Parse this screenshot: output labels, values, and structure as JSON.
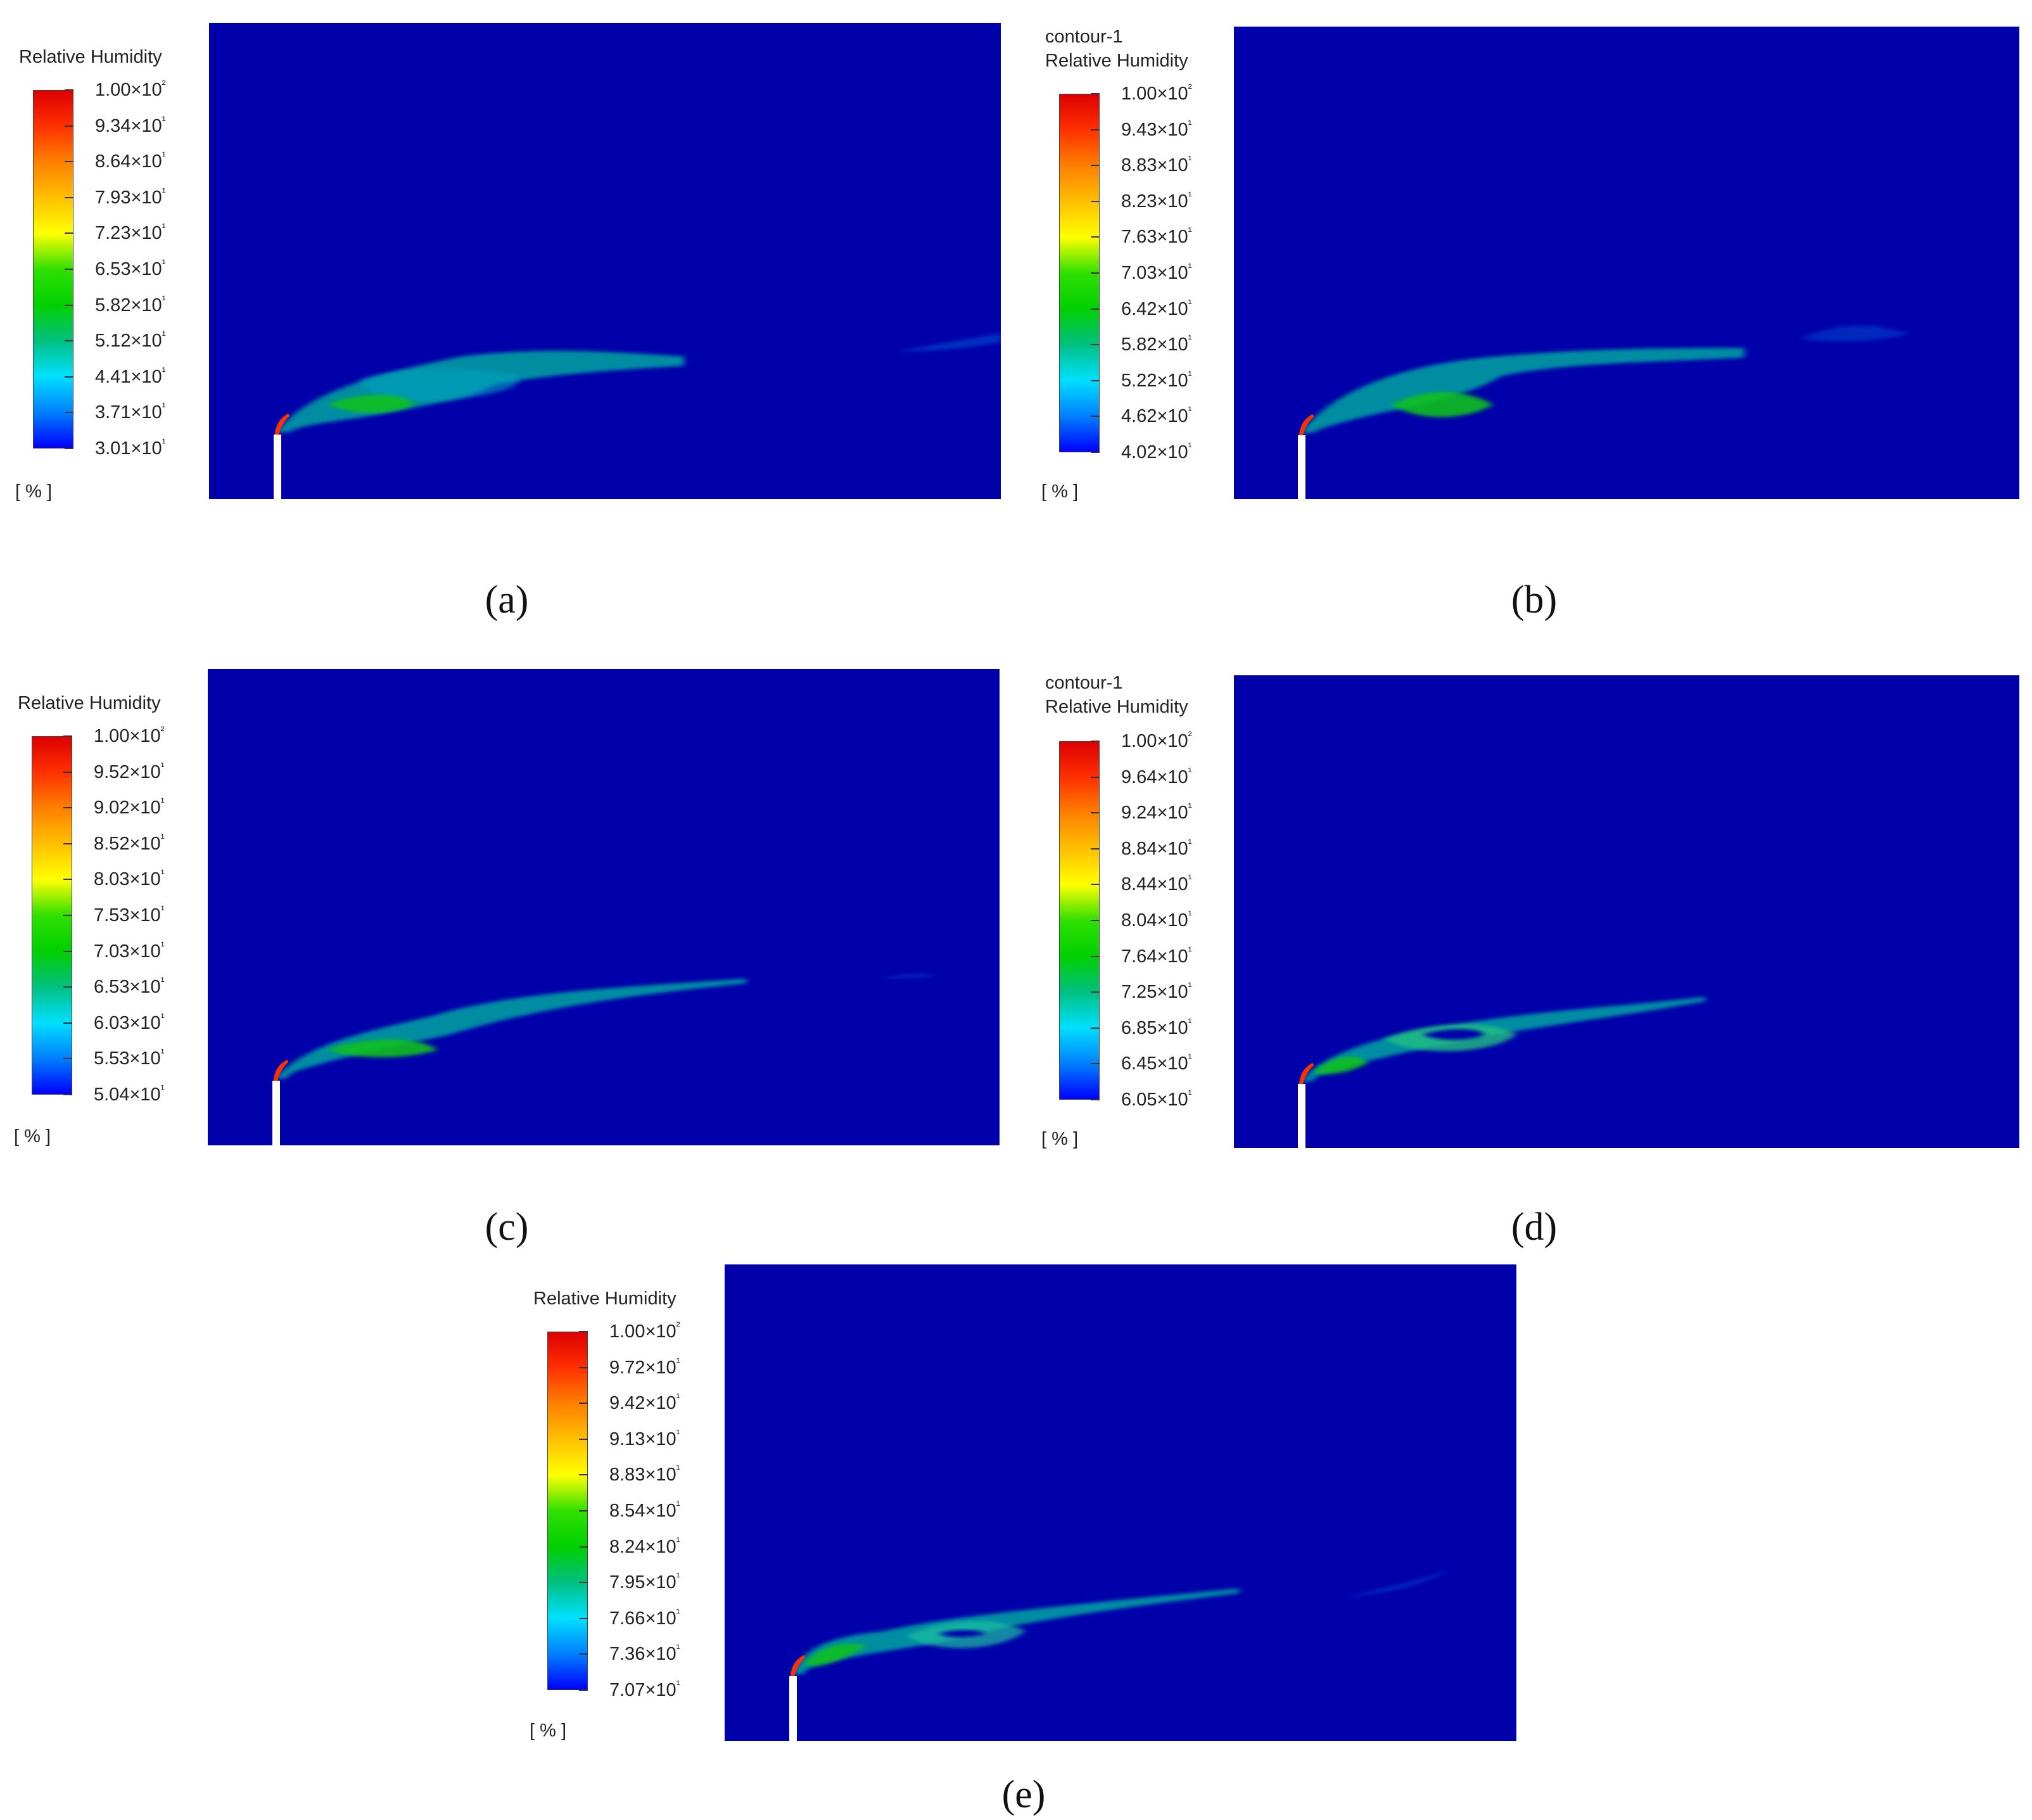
{
  "panels": [
    {
      "id": "a",
      "contour_label": "",
      "title": "Relative Humidity",
      "unit": "[ % ]",
      "ticks": [
        "1.00×10²",
        "9.34×10¹",
        "8.64×10¹",
        "7.93×10¹",
        "7.23×10¹",
        "6.53×10¹",
        "5.82×10¹",
        "5.12×10¹",
        "4.41×10¹",
        "3.71×10¹",
        "3.01×10¹"
      ],
      "caption": "(a)"
    },
    {
      "id": "b",
      "contour_label": "contour-1",
      "title": "Relative Humidity",
      "unit": "[ % ]",
      "ticks": [
        "1.00×10²",
        "9.43×10¹",
        "8.83×10¹",
        "8.23×10¹",
        "7.63×10¹",
        "7.03×10¹",
        "6.42×10¹",
        "5.82×10¹",
        "5.22×10¹",
        "4.62×10¹",
        "4.02×10¹"
      ],
      "caption": "(b)"
    },
    {
      "id": "c",
      "contour_label": "",
      "title": "Relative Humidity",
      "unit": "[ % ]",
      "ticks": [
        "1.00×10²",
        "9.52×10¹",
        "9.02×10¹",
        "8.52×10¹",
        "8.03×10¹",
        "7.53×10¹",
        "7.03×10¹",
        "6.53×10¹",
        "6.03×10¹",
        "5.53×10¹",
        "5.04×10¹"
      ],
      "caption": "(c)"
    },
    {
      "id": "d",
      "contour_label": "contour-1",
      "title": "Relative Humidity",
      "unit": "[ % ]",
      "ticks": [
        "1.00×10²",
        "9.64×10¹",
        "9.24×10¹",
        "8.84×10¹",
        "8.44×10¹",
        "8.04×10¹",
        "7.64×10¹",
        "7.25×10¹",
        "6.85×10¹",
        "6.45×10¹",
        "6.05×10¹"
      ],
      "caption": "(d)"
    },
    {
      "id": "e",
      "contour_label": "",
      "title": "Relative Humidity",
      "unit": "[ % ]",
      "ticks": [
        "1.00×10²",
        "9.72×10¹",
        "9.42×10¹",
        "9.13×10¹",
        "8.83×10¹",
        "8.54×10¹",
        "8.24×10¹",
        "7.95×10¹",
        "7.66×10¹",
        "7.36×10¹",
        "7.07×10¹"
      ],
      "caption": "(e)"
    }
  ],
  "colors": {
    "background_field": "#0000aa",
    "colormap": [
      "#0000ff",
      "#0080ff",
      "#00e0ff",
      "#00c080",
      "#00d000",
      "#30e000",
      "#ffff00",
      "#ffc000",
      "#ff8000",
      "#ff3000",
      "#dd0000"
    ]
  }
}
